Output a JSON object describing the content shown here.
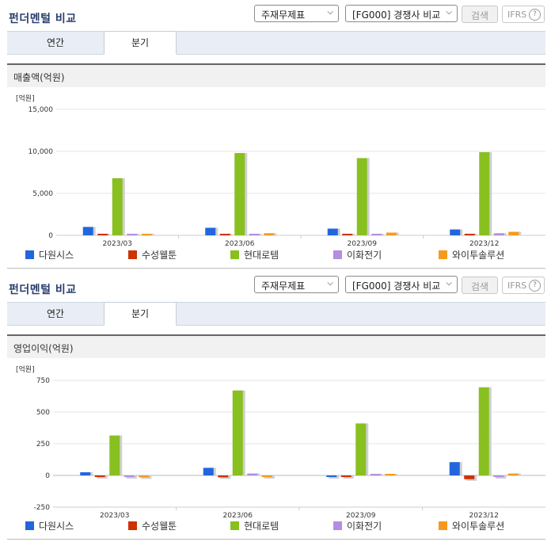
{
  "header": {
    "title": "펀더멘털 비교",
    "select1": "주재무제표",
    "select2": "[FG000] 경쟁사 비교",
    "search": "검색",
    "ifrs": "IFRS",
    "help": "?"
  },
  "tabs": [
    "연간",
    "분기"
  ],
  "active_tab": "분기",
  "colors": {
    "다원시스": "#2266dd",
    "수성웰툰": "#cc3300",
    "현대로템": "#88c020",
    "이화전기": "#b28fe0",
    "와이투솔루션": "#f59a1c"
  },
  "chart_data": [
    {
      "type": "bar",
      "title": "매출액(억원)",
      "unit_label": "[억원]",
      "categories": [
        "2023/03",
        "2023/06",
        "2023/09",
        "2023/12"
      ],
      "series": [
        {
          "name": "다원시스",
          "values": [
            1000,
            900,
            800,
            700
          ]
        },
        {
          "name": "수성웰툰",
          "values": [
            20,
            20,
            20,
            20
          ]
        },
        {
          "name": "현대로템",
          "values": [
            6800,
            9800,
            9200,
            9900
          ]
        },
        {
          "name": "이화전기",
          "values": [
            20,
            30,
            150,
            250
          ]
        },
        {
          "name": "와이투솔루션",
          "values": [
            150,
            250,
            330,
            420
          ]
        }
      ],
      "yticks": [
        "0",
        "5,000",
        "10,000",
        "15,000"
      ],
      "ytick_values": [
        0,
        5000,
        10000,
        15000
      ],
      "ylim": [
        0,
        15000
      ],
      "grid": true,
      "legend": "bottom"
    },
    {
      "type": "bar",
      "title": "영업이익(억원)",
      "unit_label": "[억원]",
      "categories": [
        "2023/03",
        "2023/06",
        "2023/09",
        "2023/12"
      ],
      "series": [
        {
          "name": "다원시스",
          "values": [
            25,
            60,
            -10,
            105
          ]
        },
        {
          "name": "수성웰툰",
          "values": [
            -3,
            -15,
            -3,
            -30
          ]
        },
        {
          "name": "현대로템",
          "values": [
            315,
            670,
            410,
            695
          ]
        },
        {
          "name": "이화전기",
          "values": [
            -5,
            15,
            10,
            -5
          ]
        },
        {
          "name": "와이투솔루션",
          "values": [
            -15,
            -5,
            10,
            15
          ]
        }
      ],
      "yticks": [
        "-250",
        "0",
        "250",
        "500",
        "750"
      ],
      "ytick_values": [
        -250,
        0,
        250,
        500,
        750
      ],
      "ylim": [
        -250,
        750
      ],
      "grid": true,
      "legend": "bottom"
    }
  ]
}
